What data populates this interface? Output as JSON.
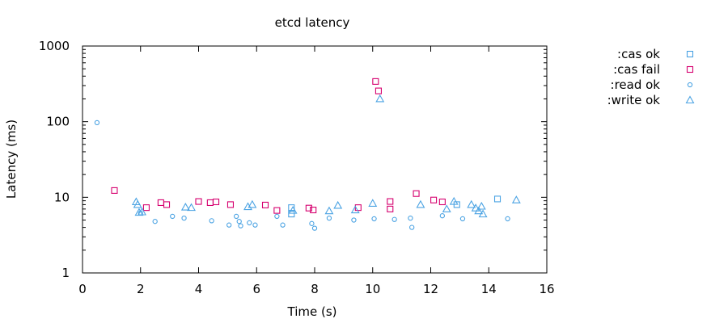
{
  "chart_data": {
    "type": "scatter",
    "title": "etcd latency",
    "xlabel": "Time (s)",
    "ylabel": "Latency (ms)",
    "xlim": [
      0,
      16
    ],
    "ylim": [
      1,
      1000
    ],
    "yscale": "log",
    "x_ticks": [
      0,
      2,
      4,
      6,
      8,
      10,
      12,
      14,
      16
    ],
    "y_ticks": [
      1,
      10,
      100,
      1000
    ],
    "x_tick_labels": [
      "0",
      "2",
      "4",
      "6",
      "8",
      "10",
      "12",
      "14",
      "16"
    ],
    "y_tick_labels": [
      "1",
      "10",
      "100",
      "1000"
    ],
    "legend_position": "top-right-outside",
    "series": [
      {
        "name": ":cas ok",
        "marker": "square",
        "color": "#4ba3e3",
        "points": [
          [
            7.2,
            7.3
          ],
          [
            7.2,
            6.0
          ],
          [
            12.9,
            8.0
          ],
          [
            14.3,
            9.5
          ]
        ]
      },
      {
        "name": ":cas fail",
        "marker": "square",
        "color": "#d6006f",
        "points": [
          [
            1.1,
            12.3
          ],
          [
            2.2,
            7.3
          ],
          [
            2.7,
            8.5
          ],
          [
            2.9,
            8.0
          ],
          [
            4.0,
            8.8
          ],
          [
            4.4,
            8.5
          ],
          [
            4.6,
            8.7
          ],
          [
            5.1,
            8.0
          ],
          [
            6.3,
            7.9
          ],
          [
            6.7,
            6.7
          ],
          [
            7.8,
            7.2
          ],
          [
            7.95,
            6.8
          ],
          [
            9.5,
            7.3
          ],
          [
            10.1,
            340
          ],
          [
            10.2,
            255
          ],
          [
            10.6,
            8.8
          ],
          [
            10.6,
            7.0
          ],
          [
            11.5,
            11.2
          ],
          [
            12.1,
            9.2
          ],
          [
            12.4,
            8.7
          ]
        ]
      },
      {
        "name": ":read ok",
        "marker": "circle",
        "color": "#4ba3e3",
        "points": [
          [
            0.5,
            97
          ],
          [
            2.0,
            6.2
          ],
          [
            2.5,
            4.8
          ],
          [
            3.1,
            5.6
          ],
          [
            3.5,
            5.3
          ],
          [
            4.45,
            4.9
          ],
          [
            5.05,
            4.3
          ],
          [
            5.3,
            5.6
          ],
          [
            5.4,
            4.8
          ],
          [
            5.45,
            4.2
          ],
          [
            5.75,
            4.6
          ],
          [
            5.95,
            4.3
          ],
          [
            6.7,
            5.6
          ],
          [
            6.9,
            4.3
          ],
          [
            7.9,
            4.5
          ],
          [
            8.0,
            3.9
          ],
          [
            8.5,
            5.3
          ],
          [
            9.35,
            5.0
          ],
          [
            10.05,
            5.2
          ],
          [
            10.75,
            5.1
          ],
          [
            11.3,
            5.3
          ],
          [
            11.35,
            4.0
          ],
          [
            12.4,
            5.7
          ],
          [
            13.1,
            5.2
          ],
          [
            14.65,
            5.2
          ]
        ]
      },
      {
        "name": ":write ok",
        "marker": "triangle",
        "color": "#4ba3e3",
        "points": [
          [
            1.85,
            8.7
          ],
          [
            1.9,
            8.0
          ],
          [
            1.95,
            6.3
          ],
          [
            2.05,
            6.4
          ],
          [
            3.55,
            7.4
          ],
          [
            3.75,
            7.3
          ],
          [
            5.7,
            7.5
          ],
          [
            5.85,
            8.0
          ],
          [
            7.25,
            6.7
          ],
          [
            8.5,
            6.6
          ],
          [
            8.8,
            7.8
          ],
          [
            9.4,
            6.8
          ],
          [
            10.0,
            8.3
          ],
          [
            10.25,
            200
          ],
          [
            11.65,
            8.0
          ],
          [
            12.55,
            7.0
          ],
          [
            12.8,
            8.8
          ],
          [
            13.4,
            8.0
          ],
          [
            13.55,
            7.2
          ],
          [
            13.65,
            6.6
          ],
          [
            13.75,
            7.6
          ],
          [
            13.8,
            6.0
          ],
          [
            14.95,
            9.2
          ]
        ]
      }
    ]
  }
}
